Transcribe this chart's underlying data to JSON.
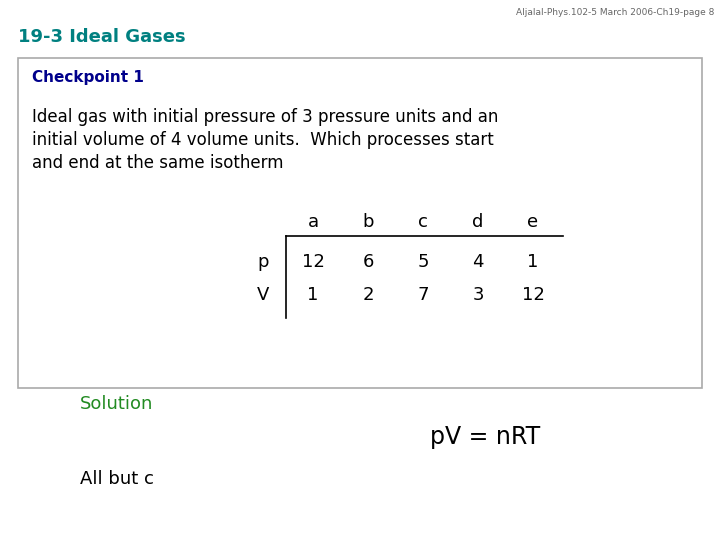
{
  "header_text": "Aljalal-Phys.102-5 March 2006-Ch19-page 8",
  "section_title": "19-3 Ideal Gases",
  "checkpoint_label": "Checkpoint 1",
  "body_text_line1": "Ideal gas with initial pressure of 3 pressure units and an",
  "body_text_line2": "initial volume of 4 volume units.  Which processes start",
  "body_text_line3": "and end at the same isotherm",
  "table_headers": [
    "a",
    "b",
    "c",
    "d",
    "e"
  ],
  "row_labels": [
    "p",
    "V"
  ],
  "table_data": [
    [
      12,
      6,
      5,
      4,
      1
    ],
    [
      1,
      2,
      7,
      3,
      12
    ]
  ],
  "solution_label": "Solution",
  "formula_text": "pV = nRT",
  "answer_text": "All but c",
  "section_color": "#008080",
  "checkpoint_color": "#00008B",
  "solution_color": "#228B22",
  "header_color": "#666666",
  "body_color": "#000000",
  "bg_color": "#ffffff",
  "box_bg": "#ffffff",
  "box_edge": "#aaaaaa"
}
